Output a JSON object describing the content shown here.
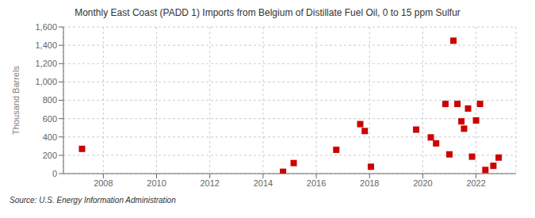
{
  "chart_data": {
    "type": "scatter",
    "title": "Monthly East Coast (PADD 1) Imports from Belgium of Distillate Fuel Oil, 0 to 15 ppm Sulfur",
    "ylabel": "Thousand Barrels",
    "annotations": [
      "Source: U.S. Energy Information Administration"
    ],
    "x": [
      2007.2,
      2014.75,
      2015.15,
      2016.75,
      2017.65,
      2017.82,
      2018.05,
      2019.75,
      2020.3,
      2020.5,
      2020.85,
      2021.0,
      2021.15,
      2021.3,
      2021.45,
      2021.55,
      2021.7,
      2021.85,
      2022.0,
      2022.15,
      2022.35,
      2022.65,
      2022.85
    ],
    "values": [
      270,
      20,
      115,
      260,
      540,
      465,
      75,
      480,
      395,
      330,
      760,
      210,
      1450,
      760,
      570,
      490,
      710,
      185,
      580,
      760,
      40,
      85,
      175
    ],
    "color": "#cc0000",
    "marker": "square",
    "xlim": [
      2006.5,
      2023.5
    ],
    "xticks": [
      2008,
      2010,
      2012,
      2014,
      2016,
      2018,
      2020,
      2022
    ],
    "ylim": [
      0,
      1600
    ],
    "yticks": [
      0,
      200,
      400,
      600,
      800,
      {
        "value": 1000,
        "label": "1,000"
      },
      {
        "value": 1200,
        "label": "1,200"
      },
      {
        "value": 1400,
        "label": "1,400"
      },
      {
        "value": 1600,
        "label": "1,600"
      }
    ],
    "grid": true
  }
}
